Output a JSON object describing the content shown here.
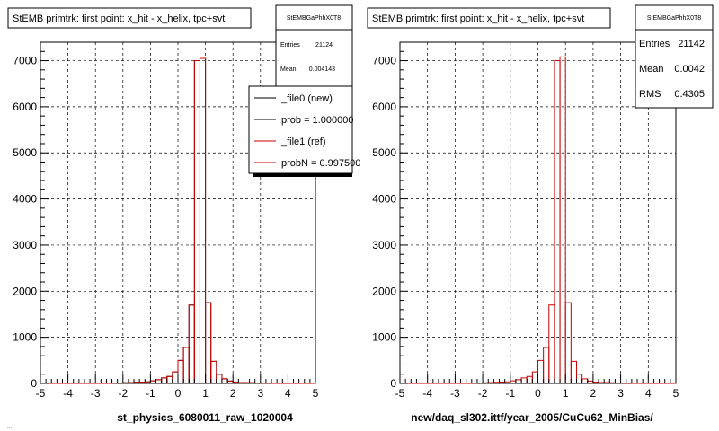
{
  "chart_data": [
    {
      "type": "histogram",
      "title": "StEMB primtrk: first point: x_hit - x_helix, tpc+svt",
      "xlabel": "st_physics_6080011_raw_1020004",
      "xlim": [
        -5,
        5
      ],
      "ylim": [
        0,
        7400
      ],
      "x_ticks": [
        "-5",
        "-4",
        "-3",
        "-2",
        "-1",
        "0",
        "1",
        "2",
        "3",
        "4",
        "5"
      ],
      "y_ticks": [
        "0",
        "1000",
        "2000",
        "3000",
        "4000",
        "5000",
        "6000",
        "7000"
      ],
      "grid": true,
      "stats": {
        "name": "StEMBGaPhhX0T8",
        "entries_label": "Entries",
        "entries": "21124",
        "mean_label": "Mean",
        "mean": "0.004143"
      },
      "legend": {
        "placement": "top-right",
        "entries": [
          "_file0 (new)",
          "prob = 1.000000",
          "_file1 (ref)",
          "probN = 0.997500"
        ]
      },
      "bin_edges_start": -5,
      "bin_width": 0.2,
      "series": [
        {
          "name": "_file1 (ref)",
          "color": "#cc0000",
          "values": [
            0,
            0,
            0,
            0,
            0,
            0,
            0,
            0,
            0,
            0,
            0,
            0,
            0,
            5,
            10,
            15,
            20,
            25,
            30,
            35,
            55,
            80,
            120,
            150,
            250,
            500,
            780,
            1700,
            7000,
            7050,
            1750,
            480,
            200,
            100,
            50,
            30,
            20,
            20,
            15,
            10,
            5,
            5,
            0,
            0,
            0,
            0,
            0,
            0,
            0,
            0
          ]
        },
        {
          "name": "_file0 (new)",
          "color": "#000000",
          "values": [
            0,
            0,
            0,
            0,
            0,
            0,
            0,
            0,
            0,
            0,
            0,
            0,
            0,
            5,
            10,
            15,
            20,
            25,
            30,
            35,
            55,
            80,
            120,
            150,
            250,
            500,
            780,
            1700,
            7000,
            7050,
            1750,
            480,
            200,
            100,
            50,
            30,
            20,
            20,
            15,
            10,
            5,
            5,
            0,
            0,
            0,
            0,
            0,
            0,
            0,
            0
          ]
        }
      ]
    },
    {
      "type": "histogram",
      "title": "StEMB primtrk: first point: x_hit - x_helix, tpc+svt",
      "xlabel": "new/daq_sl302.ittf/year_2005/CuCu62_MinBias/",
      "xlim": [
        -5,
        5
      ],
      "ylim": [
        0,
        7400
      ],
      "x_ticks": [
        "-5",
        "-4",
        "-3",
        "-2",
        "-1",
        "0",
        "1",
        "2",
        "3",
        "4",
        "5"
      ],
      "y_ticks": [
        "0",
        "1000",
        "2000",
        "3000",
        "4000",
        "5000",
        "6000",
        "7000"
      ],
      "grid": true,
      "stats": {
        "name": "StEMBGaPhhX0T8",
        "entries_label": "Entries",
        "entries": "21142",
        "mean_label": "Mean",
        "mean": "0.0042",
        "rms_label": "RMS",
        "rms": "0.4305"
      },
      "bin_edges_start": -5,
      "bin_width": 0.2,
      "series": [
        {
          "color": "#cc0000",
          "values": [
            0,
            0,
            0,
            0,
            0,
            0,
            0,
            0,
            0,
            0,
            0,
            0,
            0,
            5,
            10,
            15,
            20,
            25,
            30,
            35,
            55,
            80,
            120,
            150,
            250,
            500,
            780,
            1700,
            7000,
            7080,
            1750,
            480,
            200,
            100,
            50,
            30,
            20,
            20,
            15,
            10,
            5,
            5,
            0,
            0,
            0,
            0,
            0,
            0,
            0,
            0
          ]
        }
      ]
    }
  ],
  "footer_note": "..."
}
